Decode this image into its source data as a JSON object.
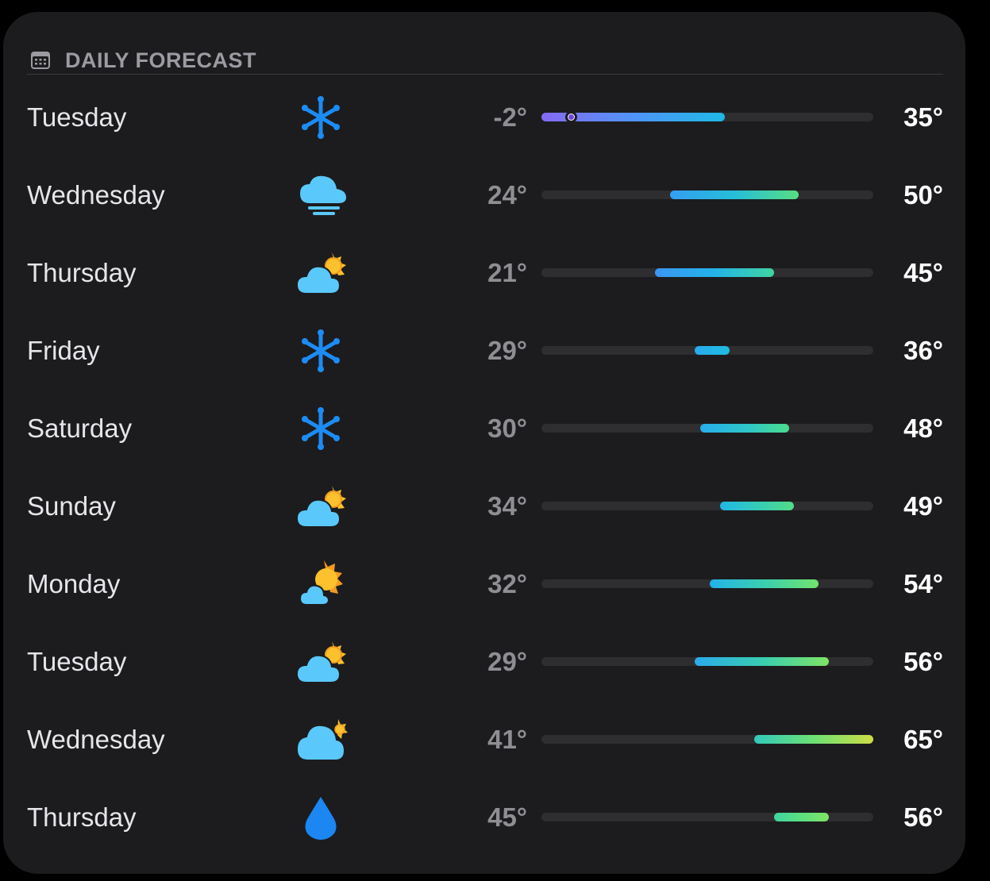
{
  "header": {
    "icon": "calendar-icon",
    "title": "DAILY FORECAST"
  },
  "scale": {
    "min": -2,
    "max": 65,
    "current": 4
  },
  "colors": {
    "card": "#1c1c1e",
    "snow": "#1c8cf5",
    "cloud": "#5ac8fa",
    "sun": "#fcc12c",
    "drop": "#1c86f2"
  },
  "days": [
    {
      "day": "Tuesday",
      "icon": "snow-icon",
      "low": "-2°",
      "high": "35°",
      "low_val": -2,
      "high_val": 35,
      "current_marker": true
    },
    {
      "day": "Wednesday",
      "icon": "fog-icon",
      "low": "24°",
      "high": "50°",
      "low_val": 24,
      "high_val": 50
    },
    {
      "day": "Thursday",
      "icon": "partly-cloudy-icon",
      "low": "21°",
      "high": "45°",
      "low_val": 21,
      "high_val": 45
    },
    {
      "day": "Friday",
      "icon": "snow-icon",
      "low": "29°",
      "high": "36°",
      "low_val": 29,
      "high_val": 36
    },
    {
      "day": "Saturday",
      "icon": "snow-icon",
      "low": "30°",
      "high": "48°",
      "low_val": 30,
      "high_val": 48
    },
    {
      "day": "Sunday",
      "icon": "partly-cloudy-icon",
      "low": "34°",
      "high": "49°",
      "low_val": 34,
      "high_val": 49
    },
    {
      "day": "Monday",
      "icon": "mostly-sunny-icon",
      "low": "32°",
      "high": "54°",
      "low_val": 32,
      "high_val": 54
    },
    {
      "day": "Tuesday",
      "icon": "partly-cloudy-icon",
      "low": "29°",
      "high": "56°",
      "low_val": 29,
      "high_val": 56
    },
    {
      "day": "Wednesday",
      "icon": "mostly-cloudy-icon",
      "low": "41°",
      "high": "65°",
      "low_val": 41,
      "high_val": 65
    },
    {
      "day": "Thursday",
      "icon": "rain-drop-icon",
      "low": "45°",
      "high": "56°",
      "low_val": 45,
      "high_val": 56
    }
  ]
}
